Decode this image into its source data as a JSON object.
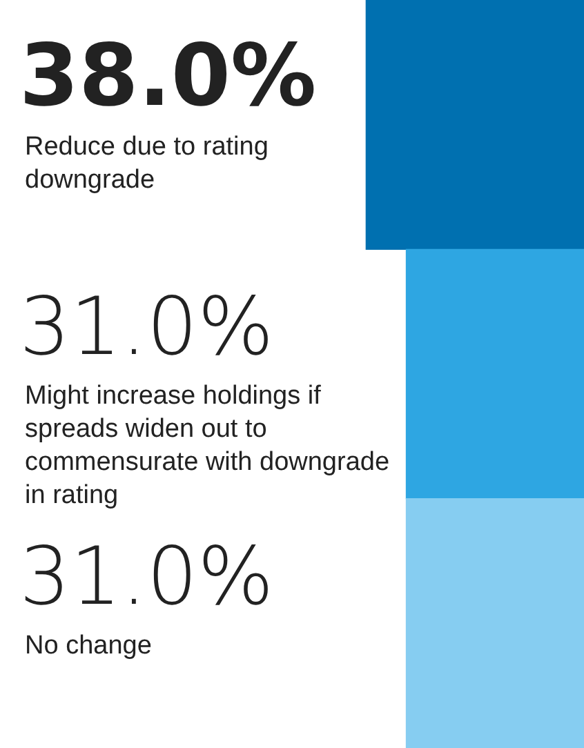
{
  "chart_data": {
    "type": "bar",
    "orientation": "horizontal",
    "relative": false,
    "categories": [
      "Reduce due to rating downgrade",
      "Might increase holdings if spreads widen out to commensurate with downgrade in rating",
      "No change"
    ],
    "values": [
      38.0,
      31.0,
      31.0
    ],
    "value_labels": [
      "38.0%",
      "31.0%",
      "31.0%"
    ],
    "colors": [
      "#0070b0",
      "#2ea6e2",
      "#86cdf1"
    ],
    "tick_labels": false,
    "legend": false
  }
}
